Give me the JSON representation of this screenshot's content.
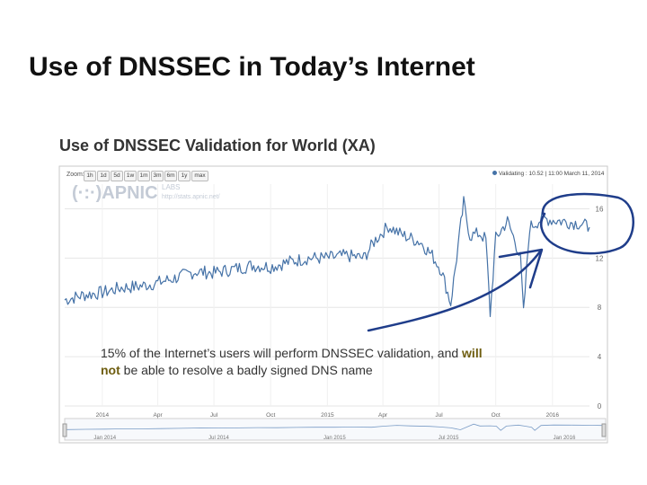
{
  "slide": {
    "title": "Use of DNSSEC in Today’s Internet"
  },
  "watermark": {
    "name": "(·:·)APNIC",
    "labs": "LABS",
    "url": "http://stats.apnic.net/"
  },
  "toolbar": {
    "zoom_label": "Zoom:",
    "zoom_options": [
      "1h",
      "1d",
      "5d",
      "1w",
      "1m",
      "3m",
      "6m",
      "1y",
      "max"
    ]
  },
  "legend": {
    "label": "Validating : 10.52",
    "timestamp": "11:00 March 11, 2014"
  },
  "navigator": {
    "labels": [
      "Jan 2014",
      "Jul 2014",
      "Jan 2015",
      "Jul 2015",
      "Jan 2016"
    ]
  },
  "callout": {
    "part1": "15% of the Internet’s users will perform DNSSEC validation, and ",
    "emph1": "will",
    "emph2": "not",
    "part2": " be able to resolve a badly signed DNS name"
  },
  "colors": {
    "series": "#4572a7",
    "annotation": "#1f3d8a",
    "emphasis": "#6e5d0f"
  },
  "icons": [
    "apnic-logo-icon",
    "legend-dot-icon",
    "arrow-icon",
    "circle-annotation-icon"
  ],
  "chart_data": {
    "type": "line",
    "title": "Use of DNSSEC Validation for World (XA)",
    "y_ticks": [
      0,
      4,
      8,
      12,
      16
    ],
    "ylim": [
      0,
      18
    ],
    "x_tick_labels": [
      "2014",
      "Apr",
      "Jul",
      "Oct",
      "2015",
      "Apr",
      "Jul",
      "Oct",
      "2016"
    ],
    "xlim": [
      "2013-11-01",
      "2016-03-01"
    ],
    "grid": true,
    "series": [
      {
        "name": "Validating",
        "points": [
          [
            "2013-11-01",
            8.6
          ],
          [
            "2013-12-01",
            9.0
          ],
          [
            "2014-01-01",
            9.2
          ],
          [
            "2014-02-01",
            9.6
          ],
          [
            "2014-03-01",
            9.7
          ],
          [
            "2014-04-01",
            10.0
          ],
          [
            "2014-05-01",
            10.4
          ],
          [
            "2014-06-01",
            10.9
          ],
          [
            "2014-07-01",
            10.8
          ],
          [
            "2014-08-01",
            11.1
          ],
          [
            "2014-09-01",
            11.4
          ],
          [
            "2014-10-01",
            11.3
          ],
          [
            "2014-11-01",
            11.7
          ],
          [
            "2014-12-01",
            12.0
          ],
          [
            "2015-01-01",
            12.0
          ],
          [
            "2015-02-01",
            12.2
          ],
          [
            "2015-03-01",
            12.0
          ],
          [
            "2015-03-20",
            13.5
          ],
          [
            "2015-04-10",
            14.6
          ],
          [
            "2015-05-01",
            13.9
          ],
          [
            "2015-06-01",
            13.3
          ],
          [
            "2015-06-20",
            12.2
          ],
          [
            "2015-07-05",
            11.0
          ],
          [
            "2015-07-20",
            8.3
          ],
          [
            "2015-08-01",
            13.0
          ],
          [
            "2015-08-10",
            16.5
          ],
          [
            "2015-08-20",
            13.8
          ],
          [
            "2015-09-05",
            14.0
          ],
          [
            "2015-09-15",
            13.5
          ],
          [
            "2015-09-22",
            7.5
          ],
          [
            "2015-10-01",
            13.6
          ],
          [
            "2015-10-20",
            15.0
          ],
          [
            "2015-11-01",
            13.4
          ],
          [
            "2015-11-10",
            12.0
          ],
          [
            "2015-11-15",
            7.5
          ],
          [
            "2015-11-25",
            14.5
          ],
          [
            "2015-12-15",
            15.2
          ],
          [
            "2016-01-15",
            15.0
          ],
          [
            "2016-02-15",
            14.8
          ],
          [
            "2016-03-01",
            14.5
          ]
        ]
      }
    ]
  }
}
